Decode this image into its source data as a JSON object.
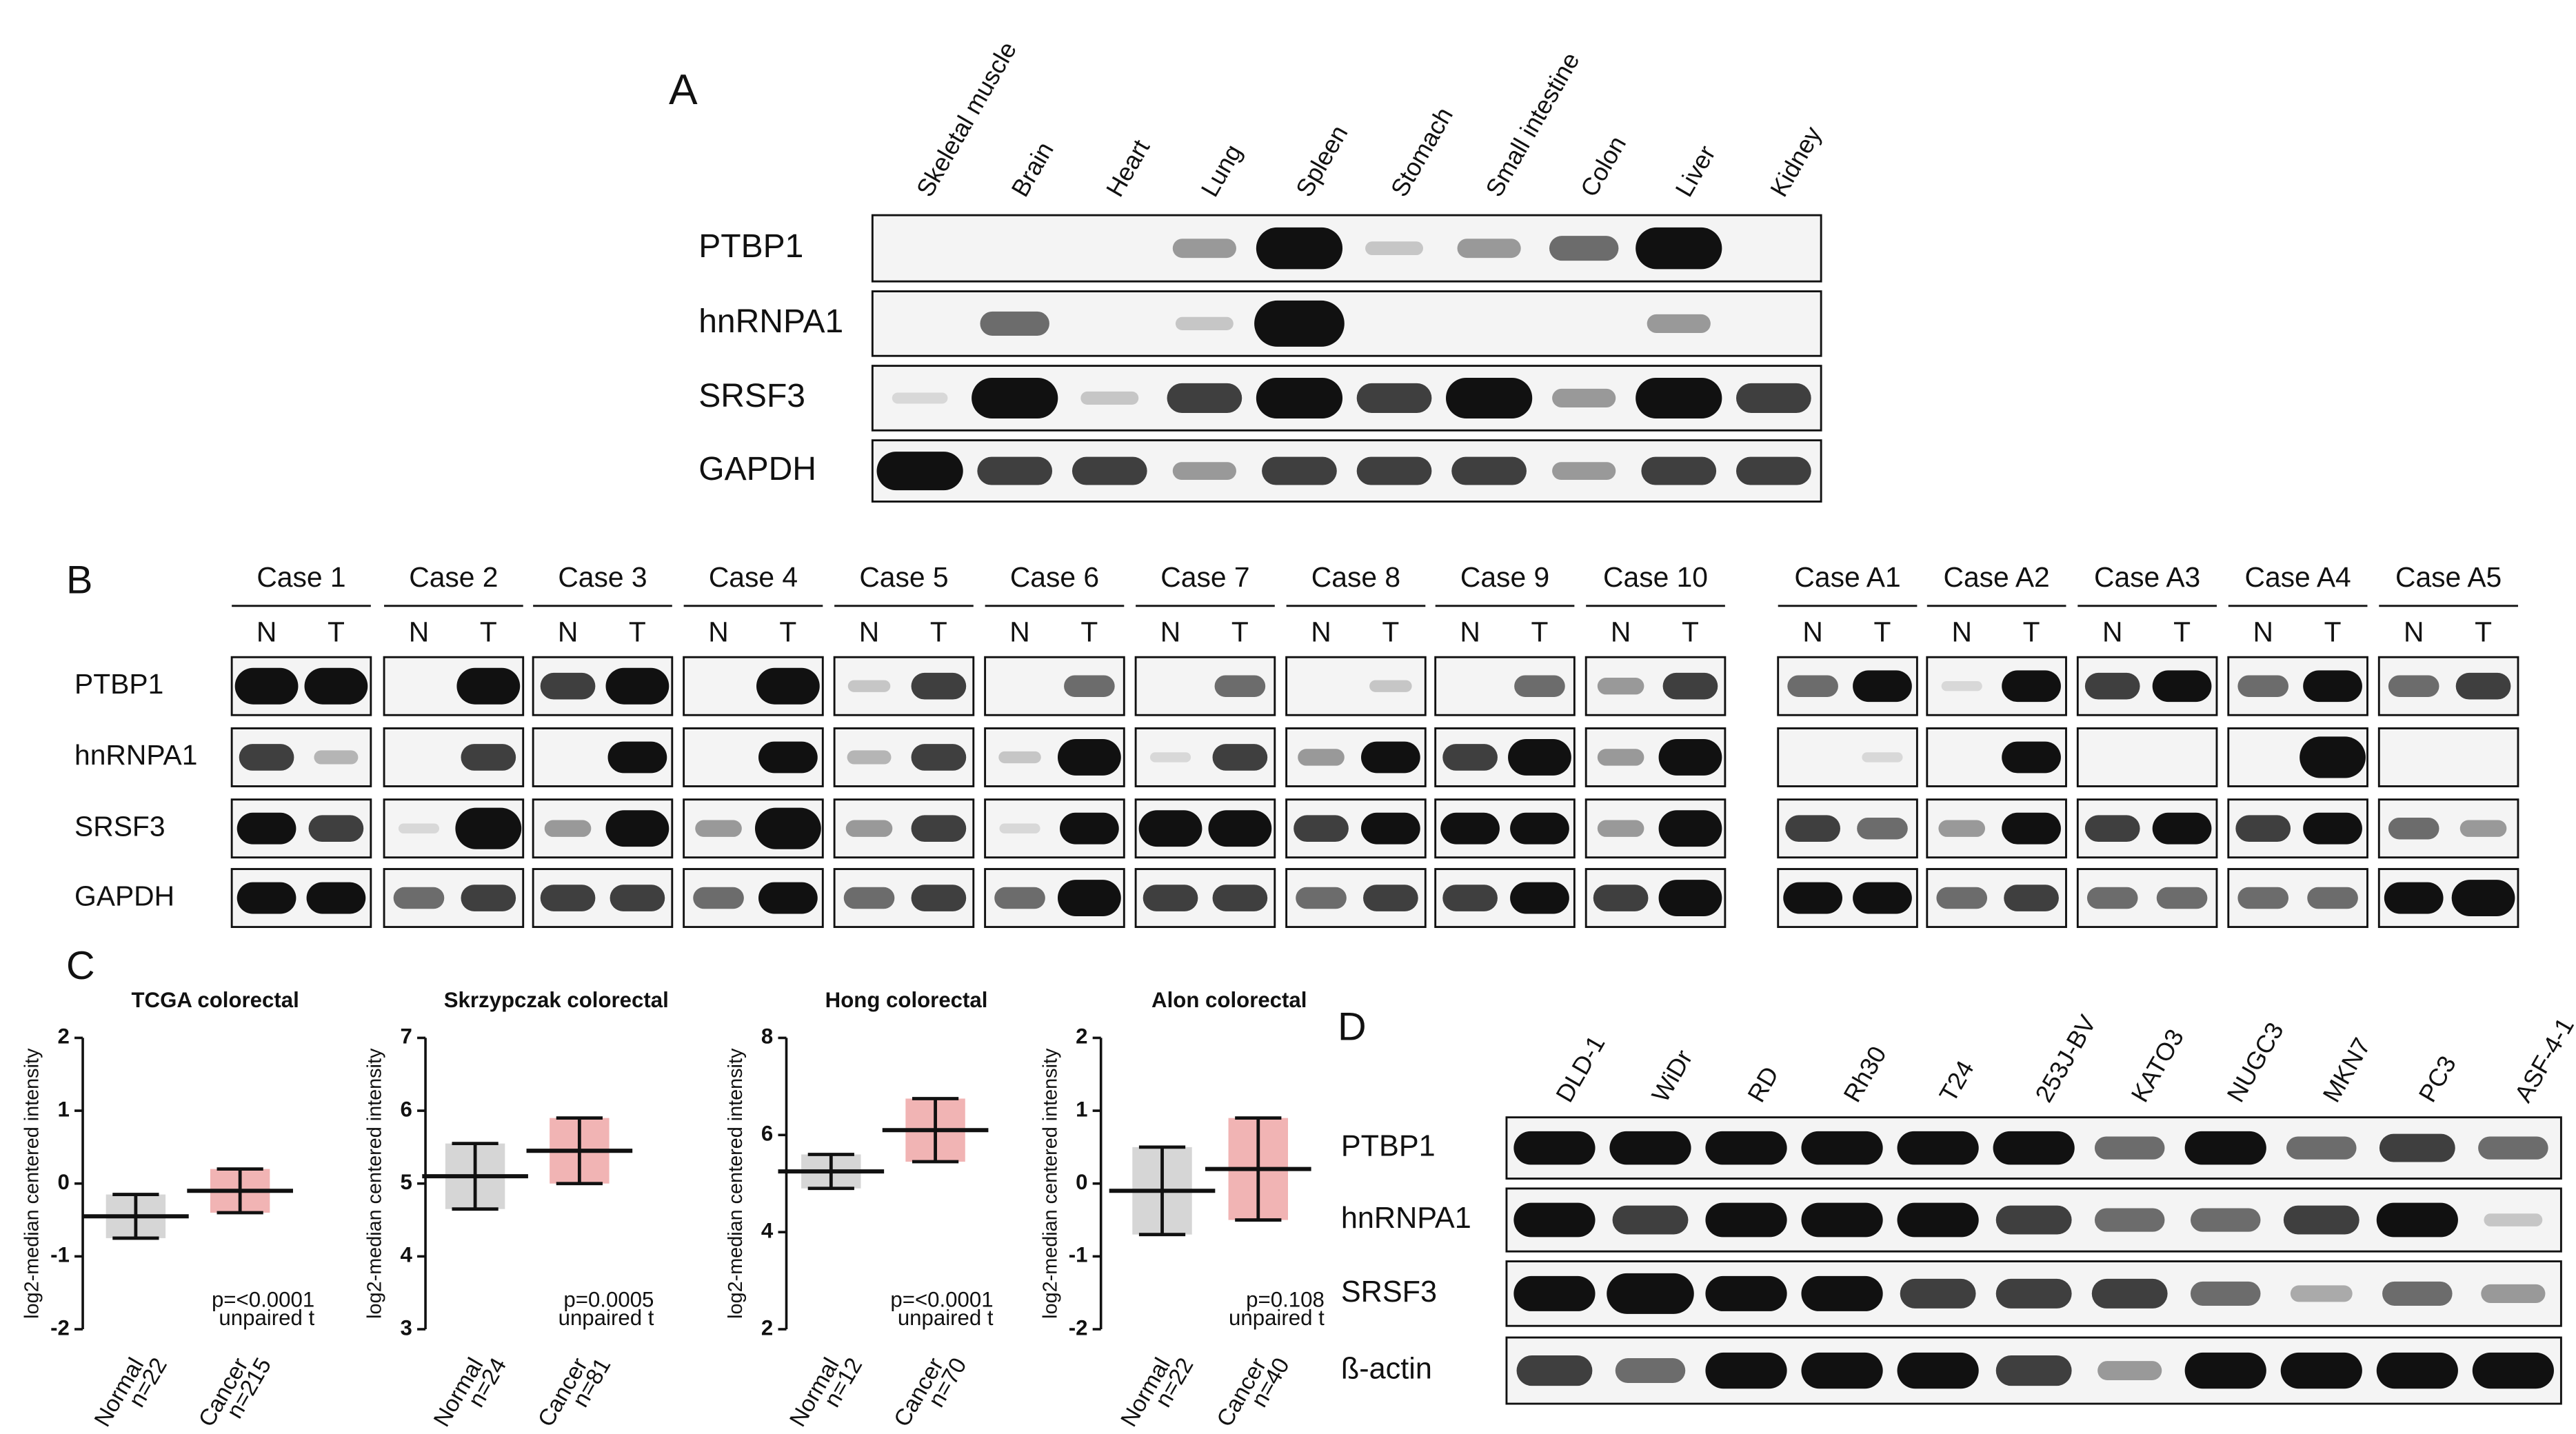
{
  "panel_a": {
    "letter": "A",
    "tissues": [
      "Skeletal muscle",
      "Brain",
      "Heart",
      "Lung",
      "Spleen",
      "Stomach",
      "Small intestine",
      "Colon",
      "Liver",
      "Kidney"
    ],
    "rows": [
      {
        "label": "PTBP1",
        "bands": [
          0,
          0,
          0,
          1,
          3,
          0.5,
          1,
          1.5,
          3,
          0
        ]
      },
      {
        "label": "hnRNPA1",
        "bands": [
          0,
          1.5,
          0,
          0.5,
          3.5,
          0,
          0,
          0,
          1,
          0
        ]
      },
      {
        "label": "SRSF3",
        "bands": [
          0.3,
          3,
          0.5,
          2,
          3,
          2,
          3,
          1,
          3,
          2
        ]
      },
      {
        "label": "GAPDH",
        "bands": [
          3,
          2,
          2,
          1,
          2,
          2,
          2,
          1,
          2,
          2
        ]
      }
    ]
  },
  "panel_b": {
    "letter": "B",
    "cases": [
      "Case 1",
      "Case 2",
      "Case 3",
      "Case 4",
      "Case 5",
      "Case 6",
      "Case 7",
      "Case 8",
      "Case 9",
      "Case 10",
      "Case A1",
      "Case A2",
      "Case A3",
      "Case A4",
      "Case A5"
    ],
    "lanes": [
      "N",
      "T"
    ],
    "rows": [
      {
        "label": "PTBP1",
        "bands": [
          [
            3,
            3
          ],
          [
            0,
            3
          ],
          [
            2,
            3
          ],
          [
            0,
            3
          ],
          [
            0.5,
            2
          ],
          [
            0,
            1.5
          ],
          [
            0,
            1.5
          ],
          [
            0,
            0.5
          ],
          [
            0,
            1.5
          ],
          [
            1,
            2
          ],
          [
            1.5,
            2.5
          ],
          [
            0.3,
            2.5
          ],
          [
            2,
            2.5
          ],
          [
            1.5,
            2.5
          ],
          [
            1.5,
            2
          ]
        ]
      },
      {
        "label": "hnRNPA1",
        "bands": [
          [
            2,
            0.7
          ],
          [
            0,
            2
          ],
          [
            0,
            2.5
          ],
          [
            0,
            2.5
          ],
          [
            0.7,
            2
          ],
          [
            0.5,
            3
          ],
          [
            0.3,
            2
          ],
          [
            1,
            2.5
          ],
          [
            2,
            3
          ],
          [
            1,
            3
          ],
          [
            0,
            0.3
          ],
          [
            0,
            2.5
          ],
          [
            0,
            0
          ],
          [
            0,
            3.5
          ],
          [
            0,
            0
          ]
        ]
      },
      {
        "label": "SRSF3",
        "bands": [
          [
            2.5,
            2
          ],
          [
            0.3,
            3.5
          ],
          [
            1,
            3
          ],
          [
            1,
            3.5
          ],
          [
            1,
            2
          ],
          [
            0.3,
            2.5
          ],
          [
            3,
            3
          ],
          [
            2,
            2.5
          ],
          [
            2.5,
            2.5
          ],
          [
            1,
            3
          ],
          [
            2,
            1.5
          ],
          [
            1,
            2.5
          ],
          [
            2,
            2.5
          ],
          [
            2,
            2.5
          ],
          [
            1.5,
            1
          ]
        ]
      },
      {
        "label": "GAPDH",
        "bands": [
          [
            2.5,
            2.5
          ],
          [
            1.5,
            2
          ],
          [
            2,
            2
          ],
          [
            1.5,
            2.5
          ],
          [
            1.5,
            2
          ],
          [
            1.5,
            3
          ],
          [
            2,
            2
          ],
          [
            1.5,
            2
          ],
          [
            2,
            2.5
          ],
          [
            2,
            3
          ],
          [
            2.5,
            2.5
          ],
          [
            1.5,
            2
          ],
          [
            1.5,
            1.5
          ],
          [
            1.5,
            1.5
          ],
          [
            2.5,
            3
          ]
        ]
      }
    ]
  },
  "panel_c": {
    "letter": "C",
    "charts": [
      {
        "type": "dotplot",
        "title": "TCGA colorectal",
        "y_label": "log2-median centered intensity",
        "ylim": [
          -2,
          2
        ],
        "yticks": [
          -2,
          -1,
          0,
          1,
          2
        ],
        "series": [
          {
            "name": "Normal",
            "n": "n=22",
            "color": "#8a8a8a",
            "mean": -0.45,
            "sd": 0.3
          },
          {
            "name": "Cancer",
            "n": "n=215",
            "color": "#d62728",
            "mean": -0.1,
            "sd": 0.3
          }
        ],
        "p_value": "p=<0.0001",
        "test": "unpaired t"
      },
      {
        "type": "dotplot",
        "title": "Skrzypczak colorectal",
        "y_label": "log2-median centered intensity",
        "ylim": [
          3,
          7
        ],
        "yticks": [
          3,
          4,
          5,
          6,
          7
        ],
        "series": [
          {
            "name": "Normal",
            "n": "n=24",
            "color": "#8a8a8a",
            "mean": 5.1,
            "sd": 0.45
          },
          {
            "name": "Cancer",
            "n": "n=81",
            "color": "#d62728",
            "mean": 5.45,
            "sd": 0.45
          }
        ],
        "p_value": "p=0.0005",
        "test": "unpaired t"
      },
      {
        "type": "dotplot",
        "title": "Hong colorectal",
        "y_label": "log2-median centered intensity",
        "ylim": [
          2,
          8
        ],
        "yticks": [
          2,
          4,
          6,
          8
        ],
        "series": [
          {
            "name": "Normal",
            "n": "n=12",
            "color": "#8a8a8a",
            "mean": 5.25,
            "sd": 0.35
          },
          {
            "name": "Cancer",
            "n": "n=70",
            "color": "#d62728",
            "mean": 6.1,
            "sd": 0.65
          }
        ],
        "p_value": "p=<0.0001",
        "test": "unpaired t"
      },
      {
        "type": "dotplot",
        "title": "Alon colorectal",
        "y_label": "log2-median centered intensity",
        "ylim": [
          -2,
          2
        ],
        "yticks": [
          -2,
          -1,
          0,
          1,
          2
        ],
        "series": [
          {
            "name": "Normal",
            "n": "n=22",
            "color": "#8a8a8a",
            "mean": -0.1,
            "sd": 0.6
          },
          {
            "name": "Cancer",
            "n": "n=40",
            "color": "#d62728",
            "mean": 0.2,
            "sd": 0.7
          }
        ],
        "p_value": "p=0.108",
        "test": "unpaired t"
      }
    ]
  },
  "panel_d": {
    "letter": "D",
    "cell_lines": [
      "DLD-1",
      "WiDr",
      "RD",
      "Rh30",
      "T24",
      "253J-BV",
      "KATO3",
      "NUGC3",
      "MKN7",
      "PC3",
      "ASF-4-1"
    ],
    "rows": [
      {
        "label": "PTBP1",
        "bands": [
          2.5,
          2.5,
          2.5,
          2.5,
          2.5,
          2.5,
          1.5,
          2.5,
          1.5,
          2,
          1.5
        ]
      },
      {
        "label": "hnRNPA1",
        "bands": [
          2.5,
          2,
          2.5,
          2.5,
          2.5,
          2,
          1.5,
          1.5,
          2,
          2.5,
          0.5
        ]
      },
      {
        "label": "SRSF3",
        "bands": [
          2.5,
          3,
          2.5,
          2.5,
          2,
          2,
          2,
          1.5,
          0.8,
          1.5,
          1
        ]
      },
      {
        "label": "ß-actin",
        "bands": [
          2,
          1.5,
          2.5,
          2.5,
          2.5,
          2,
          1,
          2.5,
          2.5,
          2.5,
          2.5
        ]
      }
    ]
  }
}
